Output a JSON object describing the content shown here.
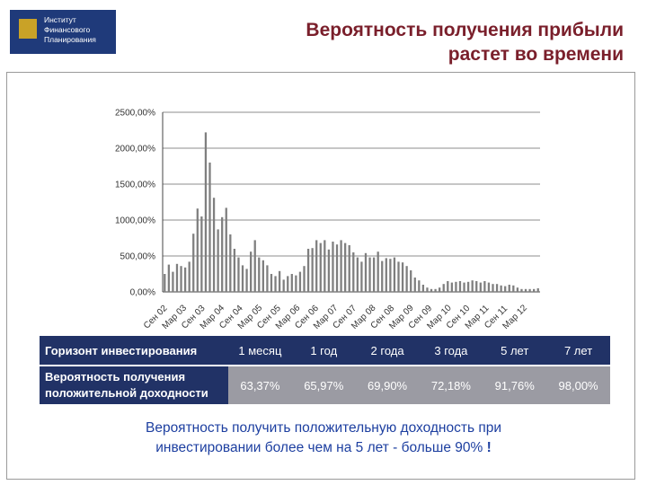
{
  "logo": {
    "line1": "Институт",
    "line2": "Финансового",
    "line3": "Планирования"
  },
  "title": {
    "line1": "Вероятность получения прибыли",
    "line2": "растет во времени"
  },
  "chart_data": {
    "type": "bar",
    "ylim": [
      0,
      2500
    ],
    "yticks": [
      "0,00%",
      "500,00%",
      "1000,00%",
      "1500,00%",
      "2000,00%",
      "2500,00%"
    ],
    "grid": true,
    "xtick_labels": [
      "Сен 02",
      "Мар 03",
      "Сен 03",
      "Мар 04",
      "Сен 04",
      "Мар 05",
      "Сен 05",
      "Мар 06",
      "Сен 06",
      "Мар 07",
      "Сен 07",
      "Мар 08",
      "Сен 08",
      "Мар 09",
      "Сен 09",
      "Мар 10",
      "Сен 10",
      "Мар 11",
      "Сен 11",
      "Мар 12"
    ],
    "values": [
      250,
      380,
      280,
      390,
      360,
      340,
      420,
      810,
      1160,
      1050,
      2220,
      1800,
      1310,
      870,
      1040,
      1170,
      800,
      600,
      480,
      370,
      320,
      560,
      720,
      480,
      440,
      370,
      250,
      220,
      290,
      170,
      220,
      250,
      230,
      280,
      360,
      600,
      610,
      720,
      680,
      720,
      590,
      700,
      660,
      720,
      680,
      650,
      550,
      480,
      420,
      540,
      480,
      480,
      560,
      430,
      470,
      460,
      480,
      420,
      410,
      360,
      300,
      200,
      160,
      100,
      60,
      40,
      40,
      60,
      110,
      150,
      130,
      140,
      150,
      130,
      140,
      160,
      150,
      130,
      150,
      130,
      110,
      110,
      90,
      80,
      100,
      90,
      60,
      40,
      40,
      40,
      40,
      50
    ]
  },
  "table": {
    "horizon_label": "Горизонт инвестирования",
    "horizons": [
      "1 месяц",
      "1 год",
      "2 года",
      "3 года",
      "5 лет",
      "7 лет"
    ],
    "prob_label_line1": "Вероятность получения",
    "prob_label_line2": "положительной доходности",
    "probabilities": [
      "63,37%",
      "65,97%",
      "69,90%",
      "72,18%",
      "91,76%",
      "98,00%"
    ]
  },
  "conclusion": {
    "line1": "Вероятность получить положительную доходность при",
    "line2": "инвестировании более чем на 5 лет - больше 90%",
    "line2_end": "!"
  },
  "colors": {
    "bars": "#7f7f7f",
    "title": "#7a1f2b",
    "table_header": "#213266",
    "table_values": "#9b9ba3",
    "conclusion": "#1d3fa0"
  }
}
